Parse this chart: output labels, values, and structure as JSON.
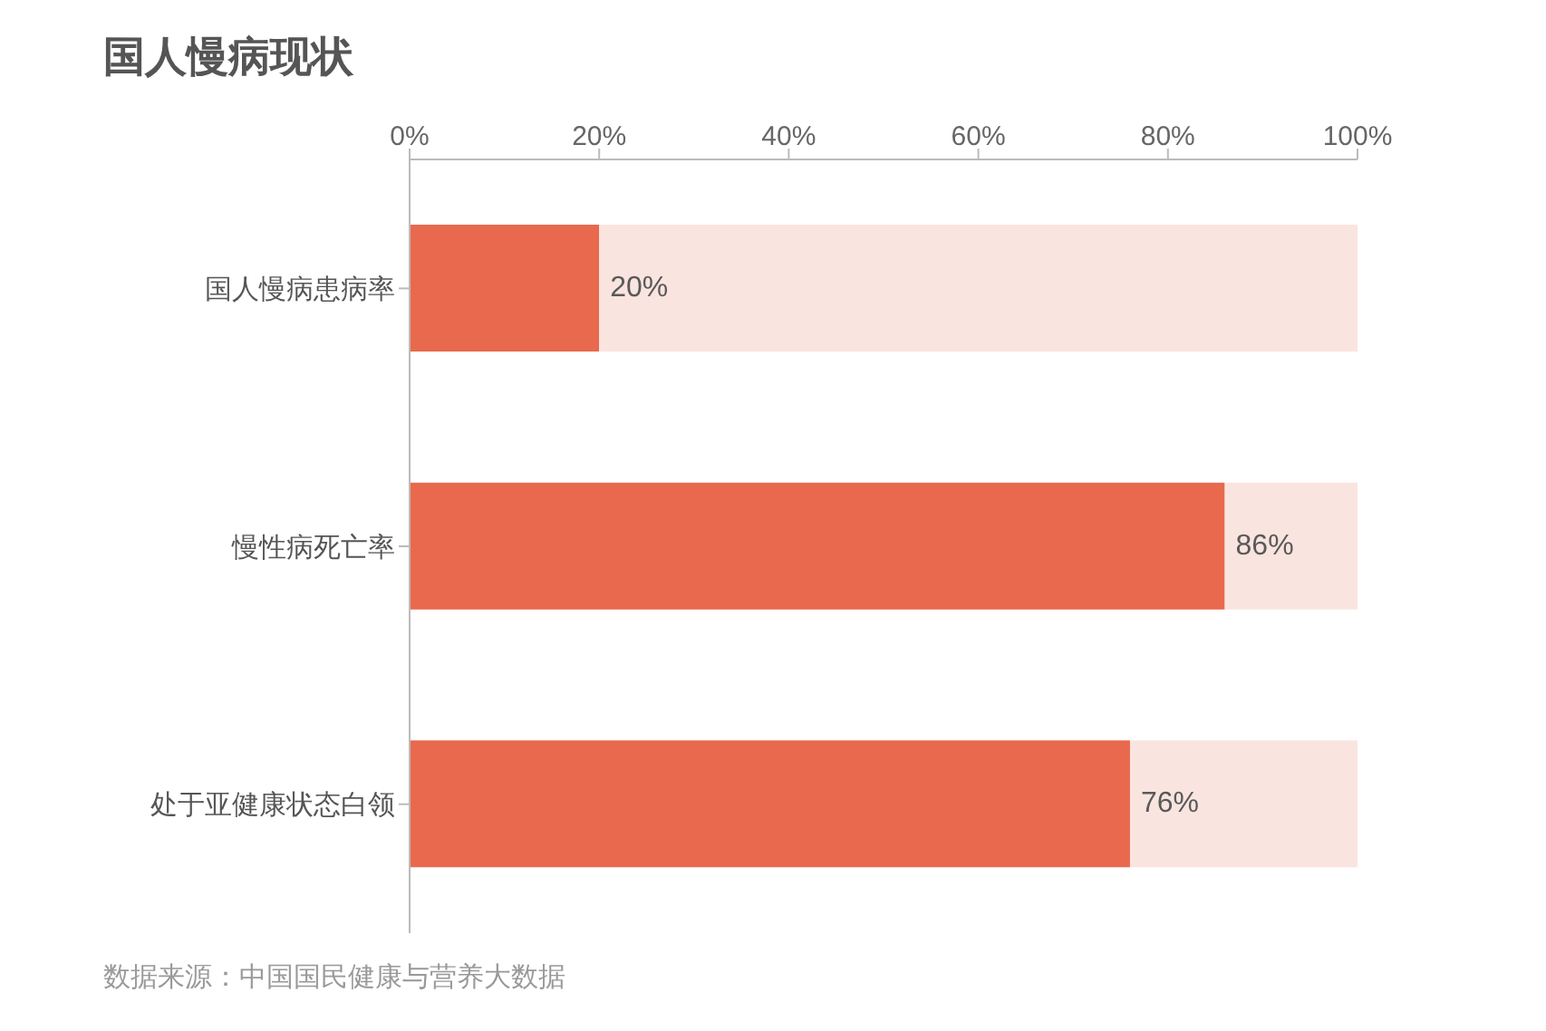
{
  "chart_data": {
    "type": "bar",
    "title": "国人慢病现状",
    "orientation": "horizontal",
    "stacked": true,
    "categories": [
      "国人慢病患病率",
      "慢性病死亡率",
      "处于亚健康状态白领"
    ],
    "series": [
      {
        "color": "#e8694d",
        "values": [
          20,
          86,
          76
        ],
        "value_labels": [
          "20%",
          "86%",
          "76%"
        ]
      },
      {
        "color": "#fae4df",
        "values": [
          80,
          14,
          24
        ]
      }
    ],
    "xlim": [
      0,
      100
    ],
    "xticks": [
      {
        "value": 0,
        "label": "0%"
      },
      {
        "value": 20,
        "label": "20%"
      },
      {
        "value": 40,
        "label": "40%"
      },
      {
        "value": 60,
        "label": "60%"
      },
      {
        "value": 80,
        "label": "80%"
      },
      {
        "value": 100,
        "label": "100%"
      }
    ],
    "annotations": [
      "数据来源：中国国民健康与营养大数据"
    ]
  }
}
